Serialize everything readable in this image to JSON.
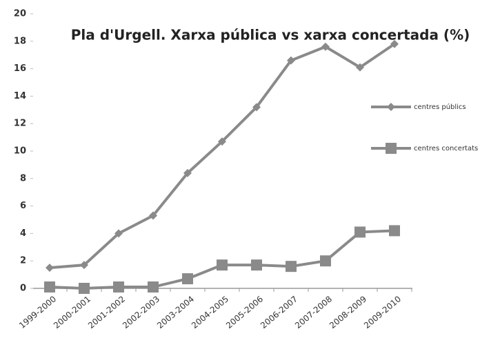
{
  "chart_data": {
    "type": "line",
    "title": "Pla d'Urgell. Xarxa pública vs xarxa concertada (%)",
    "categories": [
      "1999-2000",
      "2000-2001",
      "2001-2002",
      "2002-2003",
      "2003-2004",
      "2004-2005",
      "2005-2006",
      "2006-2007",
      "2007-2008",
      "2008-2009",
      "2009-2010"
    ],
    "series": [
      {
        "name": "centres públics",
        "color": "#8a8a8a",
        "marker": "diamond",
        "values": [
          1.5,
          1.7,
          4.0,
          5.3,
          8.4,
          10.7,
          13.2,
          16.6,
          17.6,
          16.1,
          17.8
        ]
      },
      {
        "name": "centres concertats",
        "color": "#8a8a8a",
        "marker": "square",
        "values": [
          0.1,
          0.0,
          0.1,
          0.1,
          0.7,
          1.7,
          1.7,
          1.6,
          2.0,
          4.1,
          4.2
        ]
      }
    ],
    "ylim": [
      0,
      20
    ],
    "yticks": [
      0,
      2,
      4,
      6,
      8,
      10,
      12,
      14,
      16,
      18,
      20
    ],
    "legend": "right"
  }
}
